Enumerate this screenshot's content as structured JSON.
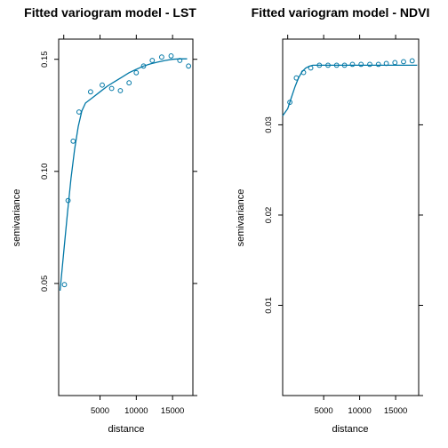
{
  "chart_data": [
    {
      "type": "scatter",
      "title": "Fitted variogram model - LST",
      "xlabel": "distance",
      "ylabel": "semivariance",
      "xlim": [
        -700,
        17800
      ],
      "ylim": [
        0.0,
        0.159
      ],
      "xticks": [
        5000,
        10000,
        15000
      ],
      "xtick_labels": [
        "5000",
        "10000",
        "15000"
      ],
      "xticks_top": [
        0,
        5000,
        10000,
        15000
      ],
      "yticks": [
        0.05,
        0.1,
        0.15
      ],
      "ytick_labels": [
        "0.05",
        "0.10",
        "0.15"
      ],
      "yticks_right": [
        0.0,
        0.05,
        0.1,
        0.15
      ],
      "grid": false,
      "series": [
        {
          "kind": "points",
          "x": [
            100,
            600,
            1300,
            2100,
            3700,
            5300,
            6600,
            7800,
            9000,
            10000,
            11000,
            12200,
            13500,
            14800,
            16000,
            17200
          ],
          "y": [
            0.0495,
            0.087,
            0.1135,
            0.1265,
            0.1355,
            0.1385,
            0.137,
            0.136,
            0.1395,
            0.144,
            0.147,
            0.1495,
            0.151,
            0.1515,
            0.1495,
            0.147
          ]
        },
        {
          "kind": "line",
          "x": [
            -500,
            0,
            500,
            1000,
            1500,
            2000,
            2500,
            3000,
            4000,
            5000,
            6000,
            7000,
            8000,
            9000,
            10000,
            11000,
            12000,
            13000,
            14000,
            15000,
            16000,
            17000
          ],
          "y": [
            0.0468,
            0.064,
            0.081,
            0.097,
            0.11,
            0.12,
            0.127,
            0.1305,
            0.133,
            0.1355,
            0.138,
            0.14,
            0.142,
            0.144,
            0.1455,
            0.147,
            0.148,
            0.1488,
            0.1495,
            0.15,
            0.1502,
            0.1502
          ]
        }
      ]
    },
    {
      "type": "scatter",
      "title": "Fitted variogram model - NDVI",
      "xlabel": "distance",
      "ylabel": "semivariance",
      "xlim": [
        -700,
        18200
      ],
      "ylim": [
        0.0,
        0.0395
      ],
      "xticks": [
        5000,
        10000,
        15000
      ],
      "xtick_labels": [
        "5000",
        "10000",
        "15000"
      ],
      "xticks_top": [
        0,
        5000,
        10000,
        15000
      ],
      "yticks": [
        0.01,
        0.02,
        0.03
      ],
      "ytick_labels": [
        "0.01",
        "0.02",
        "0.03"
      ],
      "yticks_right": [
        0.0,
        0.01,
        0.02,
        0.03
      ],
      "grid": false,
      "series": [
        {
          "kind": "points",
          "x": [
            300,
            1200,
            2200,
            3200,
            4400,
            5600,
            6800,
            7900,
            9000,
            10200,
            11400,
            12600,
            13700,
            14900,
            16100,
            17300
          ],
          "y": [
            0.0325,
            0.0352,
            0.0358,
            0.0363,
            0.0366,
            0.0366,
            0.0366,
            0.0366,
            0.0367,
            0.0367,
            0.0367,
            0.0367,
            0.0368,
            0.0369,
            0.037,
            0.0371
          ]
        },
        {
          "kind": "line",
          "x": [
            -700,
            0,
            500,
            1000,
            1500,
            2000,
            2500,
            3000,
            3500,
            4000,
            6000,
            10000,
            14000,
            18000
          ],
          "y": [
            0.031,
            0.0318,
            0.033,
            0.0342,
            0.0352,
            0.0359,
            0.0363,
            0.0365,
            0.0366,
            0.0366,
            0.0366,
            0.0366,
            0.0366,
            0.0366
          ]
        }
      ]
    }
  ]
}
